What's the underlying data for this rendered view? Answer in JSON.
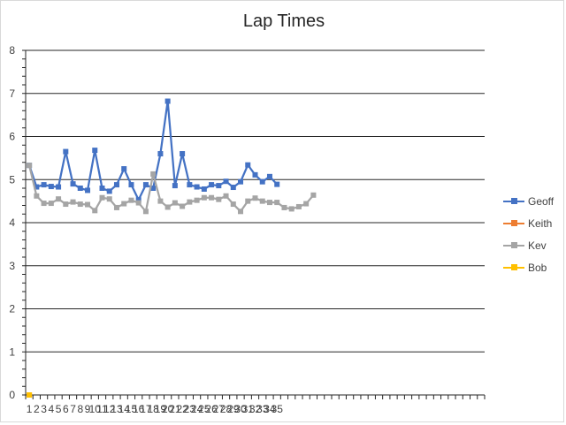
{
  "chart_data": {
    "type": "line",
    "title": "Lap Times",
    "x_categories": [
      "1",
      "2",
      "3",
      "4",
      "5",
      "6",
      "7",
      "8",
      "9",
      "10",
      "11",
      "12",
      "13",
      "14",
      "15",
      "16",
      "17",
      "18",
      "19",
      "20",
      "21",
      "22",
      "23",
      "24",
      "25",
      "26",
      "27",
      "28",
      "29",
      "30",
      "31",
      "32",
      "33",
      "34",
      "35",
      "",
      "",
      "",
      "",
      "",
      "",
      "",
      "",
      "",
      "",
      "",
      "",
      "",
      "",
      "",
      "",
      "",
      "",
      "",
      "",
      "",
      "",
      "",
      "",
      "",
      "",
      "",
      ""
    ],
    "ylim": [
      0,
      8
    ],
    "yticks": [
      0,
      1,
      2,
      3,
      4,
      5,
      6,
      7,
      8
    ],
    "grid": true,
    "legend_position": "right",
    "series": [
      {
        "name": "Geoff",
        "color": "#4472c4",
        "values": [
          5.33,
          4.83,
          4.88,
          4.84,
          4.83,
          5.65,
          4.9,
          4.8,
          4.75,
          5.68,
          4.8,
          4.73,
          4.88,
          5.25,
          4.88,
          4.53,
          4.88,
          4.8,
          5.6,
          6.82,
          4.86,
          5.6,
          4.88,
          4.83,
          4.78,
          4.88,
          4.86,
          4.96,
          4.82,
          4.95,
          5.34,
          5.11,
          4.95,
          5.07,
          4.89
        ]
      },
      {
        "name": "Keith",
        "color": "#ed7d31",
        "values": [
          0
        ]
      },
      {
        "name": "Kev",
        "color": "#a5a5a5",
        "values": [
          5.33,
          4.62,
          4.45,
          4.45,
          4.55,
          4.43,
          4.48,
          4.43,
          4.42,
          4.28,
          4.58,
          4.55,
          4.35,
          4.44,
          4.52,
          4.46,
          4.26,
          5.13,
          4.5,
          4.36,
          4.46,
          4.38,
          4.48,
          4.52,
          4.58,
          4.58,
          4.54,
          4.62,
          4.43,
          4.26,
          4.5,
          4.57,
          4.5,
          4.47,
          4.47,
          4.35,
          4.32,
          4.37,
          4.44,
          4.64
        ]
      },
      {
        "name": "Bob",
        "color": "#ffc000",
        "values": [
          0
        ]
      }
    ]
  }
}
